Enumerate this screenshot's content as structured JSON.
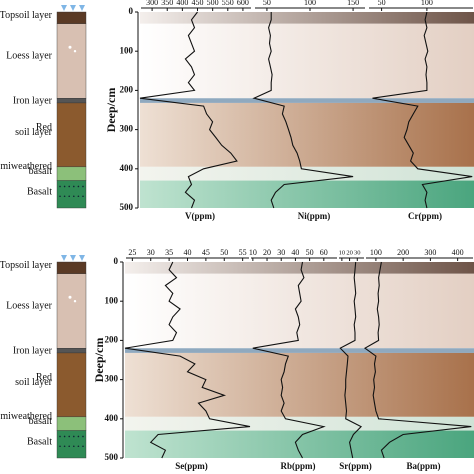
{
  "soil_layers": [
    [
      "Topsoil layer",
      "Loess layer",
      "Iron layer",
      "Red",
      "soil layer",
      "Semiweathered",
      "basalt",
      "Basalt"
    ],
    [
      "Topsoil layer",
      "Loess layer",
      "Iron layer",
      "Red",
      "soil layer",
      "Semiweathered",
      "basalt",
      "Basalt"
    ]
  ],
  "chart_data": [
    {
      "type": "line",
      "xlabel": "V(ppm)",
      "ylabel": "Deep/cm",
      "xlim": [
        260,
        630
      ],
      "xticks": [
        300,
        350,
        400,
        450,
        500,
        550,
        600
      ],
      "ylim": [
        0,
        500
      ],
      "yticks": [
        0,
        100,
        200,
        300,
        400,
        500
      ],
      "color": "#111111",
      "y": [
        0,
        20,
        40,
        60,
        80,
        100,
        120,
        140,
        160,
        180,
        200,
        220,
        240,
        260,
        280,
        300,
        320,
        340,
        360,
        380,
        400,
        420,
        440,
        460,
        480,
        500
      ],
      "values": [
        450,
        430,
        440,
        420,
        430,
        440,
        410,
        430,
        440,
        420,
        440,
        260,
        470,
        480,
        500,
        490,
        510,
        530,
        560,
        580,
        470,
        420,
        430,
        410,
        440,
        430
      ]
    },
    {
      "type": "line",
      "xlabel": "Ni(ppm)",
      "xlim": [
        35,
        165
      ],
      "xticks": [
        50,
        100,
        150
      ],
      "ylim": [
        0,
        500
      ],
      "color": "#111111",
      "y": [
        0,
        20,
        40,
        60,
        80,
        100,
        120,
        140,
        160,
        180,
        200,
        220,
        240,
        260,
        280,
        300,
        320,
        340,
        360,
        380,
        400,
        420,
        440,
        460,
        480,
        500
      ],
      "values": [
        55,
        55,
        52,
        54,
        53,
        55,
        52,
        54,
        56,
        55,
        55,
        35,
        70,
        68,
        72,
        75,
        78,
        80,
        85,
        88,
        90,
        150,
        70,
        60,
        55,
        58
      ]
    },
    {
      "type": "line",
      "xlabel": "Cr(ppm)",
      "xlim": [
        35,
        152
      ],
      "xticks": [
        50,
        100
      ],
      "ylim": [
        0,
        500
      ],
      "color": "#111111",
      "y": [
        0,
        20,
        40,
        60,
        80,
        100,
        120,
        140,
        160,
        180,
        200,
        220,
        240,
        260,
        280,
        300,
        320,
        340,
        360,
        380,
        400,
        420,
        440,
        460,
        480,
        500
      ],
      "values": [
        100,
        98,
        100,
        97,
        99,
        101,
        98,
        100,
        99,
        100,
        100,
        40,
        90,
        85,
        80,
        78,
        75,
        80,
        85,
        82,
        90,
        150,
        95,
        100,
        98,
        100
      ]
    },
    {
      "type": "line",
      "xlabel": "Se(ppm)",
      "ylabel": "Deep/cm",
      "xlim": [
        23,
        57
      ],
      "xticks": [
        25,
        30,
        35,
        40,
        45,
        50,
        55
      ],
      "ylim": [
        0,
        500
      ],
      "yticks": [
        0,
        100,
        200,
        300,
        400,
        500
      ],
      "color": "#111111",
      "y": [
        0,
        20,
        40,
        60,
        80,
        100,
        120,
        140,
        160,
        180,
        200,
        220,
        240,
        260,
        280,
        300,
        320,
        340,
        360,
        380,
        400,
        420,
        440,
        460,
        480,
        500
      ],
      "values": [
        36,
        35,
        37,
        34,
        36,
        35,
        38,
        36,
        35,
        37,
        36,
        23,
        38,
        42,
        40,
        45,
        44,
        50,
        43,
        45,
        46,
        57,
        32,
        30,
        34,
        33
      ]
    },
    {
      "type": "line",
      "xlabel": "Rb(ppm)",
      "xlim": [
        8,
        70
      ],
      "xticks": [
        10,
        20,
        30,
        40,
        50,
        60
      ],
      "ylim": [
        0,
        500
      ],
      "color": "#111111",
      "y": [
        0,
        20,
        40,
        60,
        80,
        100,
        120,
        140,
        160,
        180,
        200,
        220,
        240,
        260,
        280,
        300,
        320,
        340,
        360,
        380,
        400,
        420,
        440,
        460,
        480,
        500
      ],
      "values": [
        45,
        44,
        46,
        42,
        43,
        44,
        40,
        42,
        43,
        41,
        42,
        10,
        35,
        33,
        32,
        30,
        31,
        30,
        32,
        30,
        33,
        60,
        45,
        40,
        42,
        45
      ]
    },
    {
      "type": "line",
      "xlabel": "Sr(ppm)",
      "xlim": [
        5,
        40
      ],
      "xticks": [
        10,
        20,
        30
      ],
      "ylim": [
        0,
        500
      ],
      "color": "#111111",
      "y": [
        0,
        20,
        40,
        60,
        80,
        100,
        120,
        140,
        160,
        180,
        200,
        220,
        240,
        260,
        280,
        300,
        320,
        340,
        360,
        380,
        400,
        420,
        440,
        460,
        480,
        500
      ],
      "values": [
        28,
        27,
        26,
        27,
        28,
        26,
        27,
        28,
        26,
        27,
        27,
        8,
        18,
        17,
        16,
        15,
        15,
        14,
        15,
        16,
        15,
        35,
        25,
        20,
        22,
        24
      ]
    },
    {
      "type": "line",
      "xlabel": "Ba(ppm)",
      "xlim": [
        60,
        460
      ],
      "xticks": [
        100,
        200,
        300,
        400
      ],
      "ylim": [
        0,
        500
      ],
      "color": "#111111",
      "y": [
        0,
        20,
        40,
        60,
        80,
        100,
        120,
        140,
        160,
        180,
        200,
        220,
        240,
        260,
        280,
        300,
        320,
        340,
        360,
        380,
        400,
        420,
        440,
        460,
        480,
        500
      ],
      "values": [
        120,
        115,
        110,
        112,
        108,
        110,
        105,
        110,
        112,
        108,
        110,
        60,
        100,
        95,
        98,
        92,
        95,
        90,
        95,
        100,
        110,
        450,
        200,
        150,
        120,
        130
      ]
    }
  ]
}
